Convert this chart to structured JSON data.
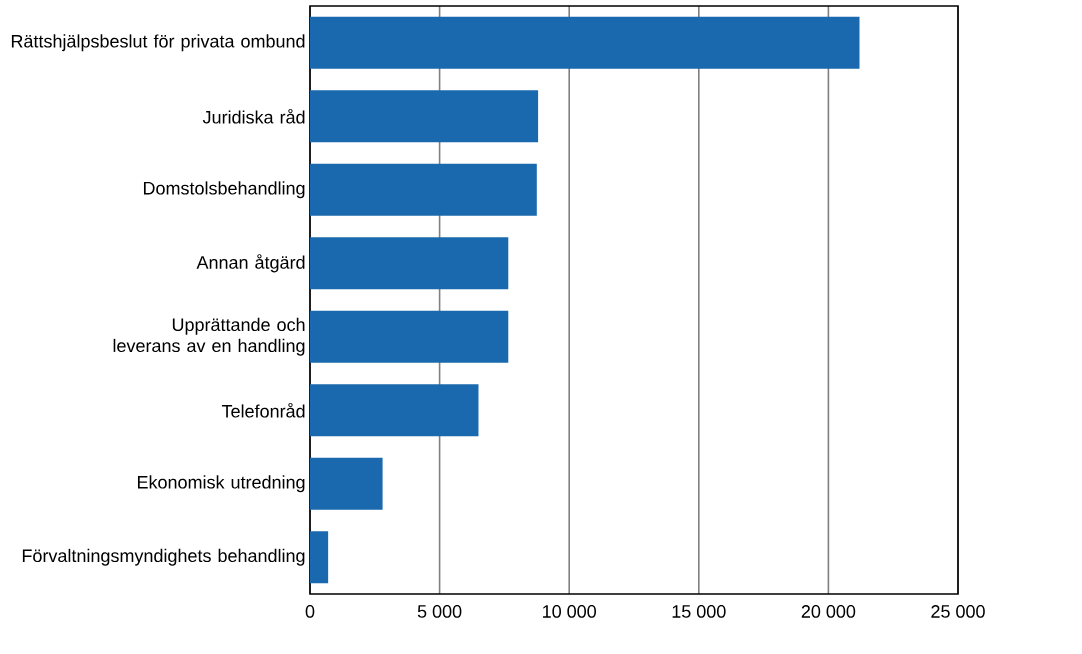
{
  "chart_data": {
    "type": "bar",
    "orientation": "horizontal",
    "categories": [
      "Rättshjälpsbeslut för privata ombund",
      "Juridiska råd",
      "Domstolsbehandling",
      "Annan åtgärd",
      "Upprättande och leverans av en handling",
      "Telefonråd",
      "Ekonomisk utredning",
      "Förvaltningsmyndighets behandling"
    ],
    "values": [
      21200,
      8800,
      8750,
      7650,
      7650,
      6500,
      2800,
      700
    ],
    "color": "#1a68ae",
    "xlim": [
      0,
      25000
    ],
    "xticks": [
      0,
      {
        "value": 5000,
        "label": "5 000"
      },
      {
        "value": 10000,
        "label": "10 000"
      },
      {
        "value": 15000,
        "label": "15 000"
      },
      {
        "value": 20000,
        "label": "20 000"
      },
      {
        "value": 25000,
        "label": "25 000"
      }
    ],
    "grid": "x"
  }
}
